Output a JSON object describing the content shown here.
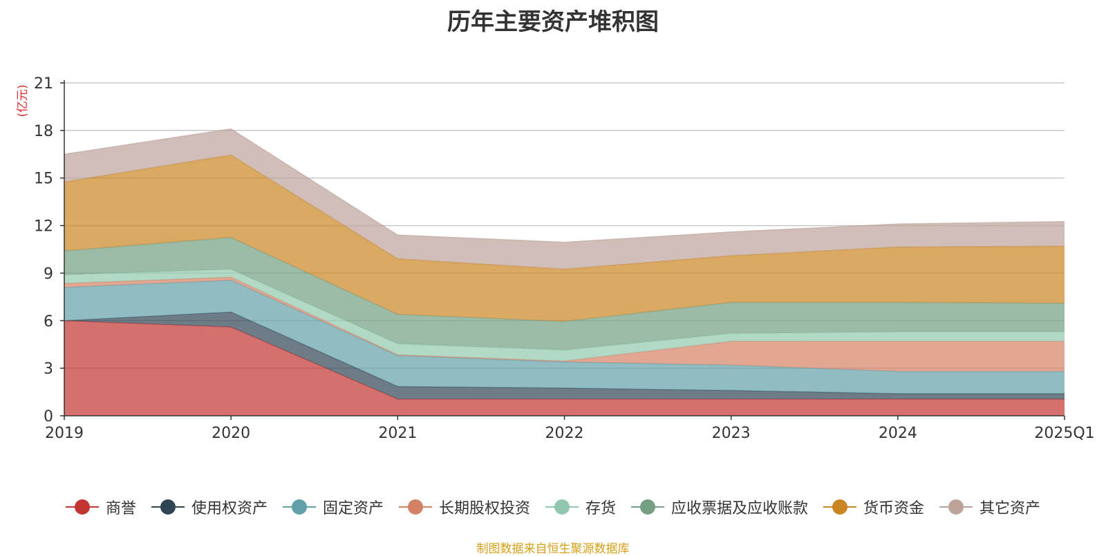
{
  "chart_data": {
    "type": "area",
    "stacked": true,
    "title": "历年主要资产堆积图",
    "ylabel": "(亿元)",
    "xlabel": "",
    "ylim": [
      0,
      21
    ],
    "yticks": [
      0,
      3,
      6,
      9,
      12,
      15,
      18,
      21
    ],
    "grid": true,
    "categories": [
      "2019",
      "2020",
      "2021",
      "2022",
      "2023",
      "2024",
      "2025Q1"
    ],
    "series": [
      {
        "name": "商誉",
        "color": "#c23531",
        "values": [
          6.0,
          5.6,
          1.05,
          1.05,
          1.05,
          1.05,
          1.05
        ]
      },
      {
        "name": "使用权资产",
        "color": "#2f4554",
        "values": [
          0.0,
          0.95,
          0.8,
          0.7,
          0.55,
          0.35,
          0.35
        ]
      },
      {
        "name": "固定资产",
        "color": "#61a0a8",
        "values": [
          2.1,
          2.0,
          1.95,
          1.65,
          1.6,
          1.4,
          1.4
        ]
      },
      {
        "name": "长期股权投资",
        "color": "#d48265",
        "values": [
          0.25,
          0.2,
          0.05,
          0.05,
          1.5,
          1.9,
          1.9
        ]
      },
      {
        "name": "存货",
        "color": "#91c7ae",
        "values": [
          0.55,
          0.5,
          0.7,
          0.7,
          0.5,
          0.6,
          0.6
        ]
      },
      {
        "name": "应收票据及应收账款",
        "color": "#749f83",
        "values": [
          1.5,
          2.0,
          1.85,
          1.8,
          1.95,
          1.85,
          1.8
        ]
      },
      {
        "name": "货币资金",
        "color": "#ca8622",
        "values": [
          4.35,
          5.2,
          3.5,
          3.3,
          2.95,
          3.5,
          3.6
        ]
      },
      {
        "name": "其它资产",
        "color": "#bda29a",
        "values": [
          1.75,
          1.65,
          1.5,
          1.7,
          1.5,
          1.45,
          1.55
        ]
      }
    ]
  },
  "source_note": "制图数据来自恒生聚源数据库"
}
